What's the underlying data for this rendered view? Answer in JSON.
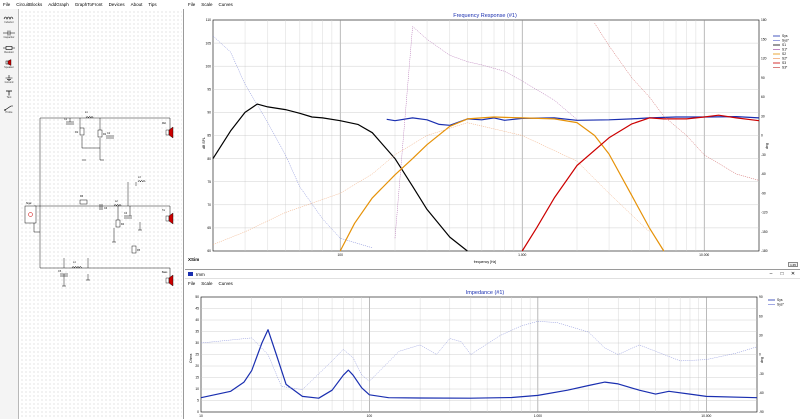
{
  "schematic": {
    "menu": [
      "File",
      "CircuitBlocks",
      "AddGraph",
      "GraphToFront",
      "Devices",
      "About",
      "Tips"
    ],
    "palette": [
      {
        "label": "Inductor",
        "icon": "inductor-icon"
      },
      {
        "label": "Capacitor",
        "icon": "capacitor-icon"
      },
      {
        "label": "Resistor",
        "icon": "resistor-icon"
      },
      {
        "label": "Speaker",
        "icon": "speaker-icon"
      },
      {
        "label": "Ground",
        "icon": "ground-icon"
      },
      {
        "label": "Text",
        "icon": "text-icon"
      },
      {
        "label": "Probe",
        "icon": "probe-icon"
      }
    ],
    "source_label": "Sigal",
    "labels": {
      "r1": "R1",
      "r2": "R2",
      "r3": "R3",
      "r4": "R4",
      "r5": "R5",
      "c1": "C1",
      "c2": "C2",
      "c3": "C3",
      "c4": "C4",
      "c5": "C5",
      "l1": "L1",
      "l2": "L2",
      "l3": "L3",
      "l4": "L4",
      "spk_top": "Mid",
      "spk_mid": "Tw",
      "spk_bot": "Bass"
    }
  },
  "fr": {
    "menu": [
      "File",
      "Scale",
      "Curves"
    ],
    "title": "Frequency Response (#1)",
    "xlabel": "frequency [Hz]",
    "ylabel_left": "dB SPL",
    "ylabel_right": "deg",
    "corner_label": "XSim",
    "corner_button": "1:45",
    "x_ticks": [
      "100",
      "1.000",
      "10.000"
    ],
    "y_ticks": [
      "110",
      "105",
      "100",
      "95",
      "90",
      "85",
      "80",
      "75",
      "70",
      "65",
      "60"
    ],
    "y_ticks_right": [
      "180",
      "150",
      "120",
      "90",
      "60",
      "30",
      "0",
      "-30",
      "-60",
      "-90",
      "-120",
      "-150",
      "-180"
    ],
    "legend": [
      "Sys",
      "Sys*",
      "S1",
      "S1*",
      "S2",
      "S2*",
      "S3",
      "S3*"
    ]
  },
  "imp": {
    "window_title": "Imm",
    "menu": [
      "File",
      "Scale",
      "Curves"
    ],
    "title": "Impedance (#1)",
    "ylabel_left": "Ohms",
    "ylabel_right": "deg",
    "x_ticks": [
      "10",
      "100",
      "1.000",
      "10.000"
    ],
    "y_ticks": [
      "50",
      "45",
      "40",
      "35",
      "30",
      "25",
      "20",
      "15",
      "10",
      "5",
      "0"
    ],
    "y_ticks_right": [
      "90",
      "60",
      "30",
      "0",
      "-30",
      "-60",
      "-90"
    ],
    "legend": [
      "Sys",
      "Sys*"
    ]
  },
  "chart_data": [
    {
      "type": "line",
      "title": "Frequency Response (#1)",
      "xlabel": "frequency [Hz]",
      "ylabel": "dB SPL",
      "x_scale": "log",
      "xlim": [
        20,
        20000
      ],
      "ylim": [
        60,
        110
      ],
      "y2lim": [
        -180,
        180
      ],
      "grid": true,
      "legend_position": "right",
      "series": [
        {
          "name": "Sys",
          "axis": "left",
          "color": "#1a2fb0",
          "style": "solid",
          "points": [
            [
              180,
              88.5
            ],
            [
              200,
              88.2
            ],
            [
              250,
              88.8
            ],
            [
              300,
              88.4
            ],
            [
              350,
              87.4
            ],
            [
              400,
              87.2
            ],
            [
              500,
              88.6
            ],
            [
              600,
              88.4
            ],
            [
              700,
              88.8
            ],
            [
              800,
              88.3
            ],
            [
              1000,
              88.7
            ],
            [
              1500,
              88.8
            ],
            [
              2000,
              88.3
            ],
            [
              3000,
              88.4
            ],
            [
              4000,
              88.6
            ],
            [
              5000,
              88.8
            ],
            [
              7000,
              89.0
            ],
            [
              10000,
              89.0
            ],
            [
              15000,
              89.1
            ],
            [
              20000,
              88.8
            ]
          ]
        },
        {
          "name": "Sys*",
          "axis": "right",
          "color": "#7d87d8",
          "style": "dashed",
          "points": [
            [
              20,
              155
            ],
            [
              25,
              130
            ],
            [
              30,
              80
            ],
            [
              40,
              20
            ],
            [
              50,
              -30
            ],
            [
              60,
              -80
            ],
            [
              80,
              -130
            ],
            [
              100,
              -160
            ],
            [
              150,
              -175
            ]
          ]
        },
        {
          "name": "S1",
          "axis": "left",
          "color": "#000000",
          "style": "solid",
          "points": [
            [
              20,
              80.0
            ],
            [
              25,
              86.0
            ],
            [
              30,
              90.0
            ],
            [
              35,
              91.8
            ],
            [
              40,
              91.2
            ],
            [
              50,
              90.6
            ],
            [
              60,
              89.8
            ],
            [
              70,
              89.0
            ],
            [
              80,
              88.8
            ],
            [
              100,
              88.2
            ],
            [
              125,
              87.4
            ],
            [
              150,
              85.6
            ],
            [
              200,
              80.0
            ],
            [
              250,
              74.0
            ],
            [
              300,
              69.0
            ],
            [
              400,
              63.0
            ],
            [
              500,
              60.0
            ]
          ]
        },
        {
          "name": "S1*",
          "axis": "right",
          "color": "#b06ab0",
          "style": "dashed",
          "points": [
            [
              200,
              -160
            ],
            [
              250,
              170
            ],
            [
              300,
              150
            ],
            [
              400,
              125
            ],
            [
              500,
              115
            ],
            [
              600,
              110
            ],
            [
              800,
              100
            ],
            [
              1000,
              85
            ],
            [
              1500,
              55
            ],
            [
              2000,
              25
            ]
          ]
        },
        {
          "name": "S2",
          "axis": "left",
          "color": "#e69208",
          "style": "solid",
          "points": [
            [
              100,
              60.0
            ],
            [
              120,
              66.0
            ],
            [
              150,
              71.5
            ],
            [
              200,
              76.5
            ],
            [
              250,
              80.0
            ],
            [
              300,
              83.0
            ],
            [
              400,
              87.0
            ],
            [
              500,
              88.6
            ],
            [
              700,
              89.0
            ],
            [
              1000,
              88.8
            ],
            [
              1500,
              88.6
            ],
            [
              2000,
              87.8
            ],
            [
              2500,
              85.0
            ],
            [
              3000,
              81.0
            ],
            [
              4000,
              72.0
            ],
            [
              5000,
              65.0
            ],
            [
              6000,
              60.0
            ]
          ]
        },
        {
          "name": "S2*",
          "axis": "right",
          "color": "#f0a878",
          "style": "dashed",
          "points": [
            [
              20,
              -170
            ],
            [
              30,
              -150
            ],
            [
              50,
              -120
            ],
            [
              100,
              -90
            ],
            [
              150,
              -60
            ],
            [
              200,
              -30
            ],
            [
              300,
              0
            ],
            [
              500,
              20
            ],
            [
              1000,
              0
            ],
            [
              2000,
              -40
            ],
            [
              3000,
              -90
            ],
            [
              5000,
              -150
            ]
          ]
        },
        {
          "name": "S3",
          "axis": "left",
          "color": "#cc0000",
          "style": "solid",
          "points": [
            [
              1000,
              60.0
            ],
            [
              1200,
              65.0
            ],
            [
              1500,
              71.5
            ],
            [
              2000,
              78.5
            ],
            [
              3000,
              84.5
            ],
            [
              4000,
              87.5
            ],
            [
              5000,
              88.8
            ],
            [
              6000,
              88.6
            ],
            [
              8000,
              88.6
            ],
            [
              10000,
              89.0
            ],
            [
              12000,
              89.4
            ],
            [
              15000,
              88.8
            ],
            [
              20000,
              88.2
            ]
          ]
        },
        {
          "name": "S3*",
          "axis": "right",
          "color": "#d06060",
          "style": "dashed",
          "points": [
            [
              2500,
              175
            ],
            [
              3000,
              140
            ],
            [
              4000,
              90
            ],
            [
              5000,
              60
            ],
            [
              6000,
              30
            ],
            [
              8000,
              0
            ],
            [
              10000,
              -30
            ],
            [
              15000,
              -60
            ],
            [
              20000,
              -70
            ]
          ]
        }
      ]
    },
    {
      "type": "line",
      "title": "Impedance (#1)",
      "ylabel": "Ohms",
      "x_scale": "log",
      "xlim": [
        10,
        20000
      ],
      "ylim": [
        0,
        50
      ],
      "y2lim": [
        -90,
        90
      ],
      "grid": true,
      "legend_position": "right",
      "series": [
        {
          "name": "Sys",
          "axis": "left",
          "color": "#1a2fb0",
          "style": "solid",
          "points": [
            [
              10,
              6.2
            ],
            [
              15,
              9.0
            ],
            [
              18,
              13.0
            ],
            [
              20,
              18.0
            ],
            [
              23,
              30.0
            ],
            [
              25,
              35.8
            ],
            [
              28,
              25.0
            ],
            [
              32,
              12.0
            ],
            [
              40,
              6.8
            ],
            [
              50,
              6.0
            ],
            [
              60,
              9.5
            ],
            [
              70,
              16.0
            ],
            [
              75,
              18.2
            ],
            [
              80,
              16.0
            ],
            [
              90,
              10.5
            ],
            [
              100,
              7.5
            ],
            [
              130,
              6.2
            ],
            [
              200,
              6.1
            ],
            [
              400,
              6.0
            ],
            [
              700,
              6.3
            ],
            [
              1000,
              7.2
            ],
            [
              1500,
              9.5
            ],
            [
              2000,
              11.5
            ],
            [
              2500,
              13.0
            ],
            [
              3000,
              12.2
            ],
            [
              4000,
              9.5
            ],
            [
              5000,
              7.8
            ],
            [
              6000,
              9.0
            ],
            [
              8000,
              7.8
            ],
            [
              10000,
              6.8
            ],
            [
              20000,
              6.2
            ]
          ]
        },
        {
          "name": "Sys*",
          "axis": "right",
          "color": "#8a93dc",
          "style": "dashed",
          "points": [
            [
              10,
              18
            ],
            [
              20,
              26
            ],
            [
              25,
              0
            ],
            [
              30,
              -50
            ],
            [
              40,
              -55
            ],
            [
              60,
              -10
            ],
            [
              70,
              8
            ],
            [
              80,
              -5
            ],
            [
              90,
              -32
            ],
            [
              100,
              -42
            ],
            [
              150,
              5
            ],
            [
              200,
              15
            ],
            [
              250,
              0
            ],
            [
              300,
              25
            ],
            [
              350,
              20
            ],
            [
              400,
              0
            ],
            [
              600,
              30
            ],
            [
              800,
              45
            ],
            [
              1000,
              52
            ],
            [
              1300,
              50
            ],
            [
              2000,
              35
            ],
            [
              2500,
              10
            ],
            [
              3000,
              0
            ],
            [
              4000,
              15
            ],
            [
              5000,
              5
            ],
            [
              7000,
              -10
            ],
            [
              10000,
              -8
            ],
            [
              15000,
              2
            ],
            [
              20000,
              12
            ]
          ]
        }
      ]
    }
  ]
}
